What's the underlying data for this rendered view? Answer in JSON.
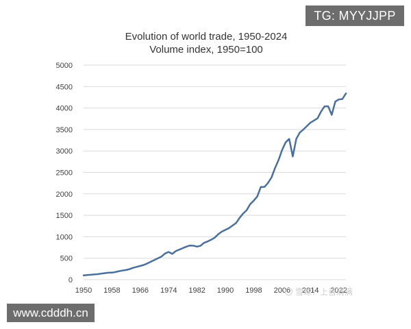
{
  "chart_data": {
    "type": "line",
    "title": "Evolution of world trade, 1950-2024",
    "subtitle": "Volume index, 1950=100",
    "xlabel": "",
    "ylabel": "",
    "xlim": [
      1950,
      2024
    ],
    "ylim": [
      0,
      5000
    ],
    "y_ticks": [
      0,
      500,
      1000,
      1500,
      2000,
      2500,
      3000,
      3500,
      4000,
      4500,
      5000
    ],
    "x_ticks": [
      "1950",
      "1958",
      "1966",
      "1974",
      "1982",
      "1990",
      "1998",
      "2006",
      "2014",
      "2022"
    ],
    "grid": "horizontal",
    "legend": "none",
    "series": [
      {
        "color": "#4a6f9a",
        "x": [
          1950,
          1951,
          1952,
          1953,
          1954,
          1955,
          1956,
          1957,
          1958,
          1959,
          1960,
          1961,
          1962,
          1963,
          1964,
          1965,
          1966,
          1967,
          1968,
          1969,
          1970,
          1971,
          1972,
          1973,
          1974,
          1975,
          1976,
          1977,
          1978,
          1979,
          1980,
          1981,
          1982,
          1983,
          1984,
          1985,
          1986,
          1987,
          1988,
          1989,
          1990,
          1991,
          1992,
          1993,
          1994,
          1995,
          1996,
          1997,
          1998,
          1999,
          2000,
          2001,
          2002,
          2003,
          2004,
          2005,
          2006,
          2007,
          2008,
          2009,
          2010,
          2011,
          2012,
          2013,
          2014,
          2015,
          2016,
          2017,
          2018,
          2019,
          2020,
          2021,
          2022,
          2023,
          2024
        ],
        "values": [
          100,
          108,
          113,
          122,
          128,
          140,
          152,
          161,
          163,
          177,
          198,
          212,
          225,
          246,
          276,
          299,
          320,
          343,
          378,
          418,
          460,
          500,
          540,
          610,
          645,
          600,
          665,
          700,
          735,
          770,
          795,
          790,
          770,
          790,
          860,
          890,
          930,
          980,
          1060,
          1120,
          1160,
          1200,
          1260,
          1320,
          1440,
          1540,
          1620,
          1760,
          1840,
          1940,
          2160,
          2160,
          2250,
          2380,
          2600,
          2790,
          3020,
          3200,
          3280,
          2870,
          3280,
          3430,
          3500,
          3580,
          3660,
          3710,
          3760,
          3920,
          4040,
          4040,
          3840,
          4150,
          4200,
          4210,
          4340
        ]
      }
    ]
  },
  "watermarks": {
    "tg": "TG: MYYJJPP",
    "url": "www.cdddh.cn",
    "xueqiu": "雪球：上善清满"
  }
}
